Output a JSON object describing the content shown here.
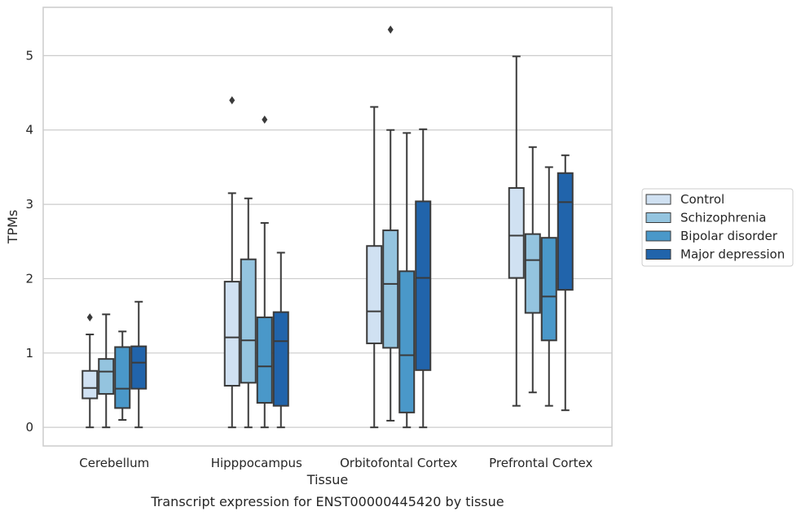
{
  "caption": "Transcript expression for ENST00000445420 by tissue",
  "chart_data": {
    "type": "box",
    "xlabel": "Tissue",
    "ylabel": "TPMs",
    "ylim": [
      -0.25,
      5.65
    ],
    "yticks": [
      0,
      1,
      2,
      3,
      4,
      5
    ],
    "grid": true,
    "legend_position": "right",
    "categories": [
      "Cerebellum",
      "Hipppocampus",
      "Orbitofontal Cortex",
      "Prefrontal Cortex"
    ],
    "series": [
      {
        "name": "Control",
        "color": "#d0e1f2",
        "boxes": [
          {
            "whisker_low": 0.0,
            "q1": 0.39,
            "median": 0.53,
            "q3": 0.76,
            "whisker_high": 1.25,
            "outliers": [
              1.48
            ]
          },
          {
            "whisker_low": 0.0,
            "q1": 0.56,
            "median": 1.21,
            "q3": 1.96,
            "whisker_high": 3.15,
            "outliers": [
              4.4
            ]
          },
          {
            "whisker_low": 0.0,
            "q1": 1.13,
            "median": 1.56,
            "q3": 2.44,
            "whisker_high": 4.31,
            "outliers": []
          },
          {
            "whisker_low": 0.29,
            "q1": 2.01,
            "median": 2.58,
            "q3": 3.22,
            "whisker_high": 4.99,
            "outliers": []
          }
        ]
      },
      {
        "name": "Schizophrenia",
        "color": "#94c4df",
        "boxes": [
          {
            "whisker_low": 0.0,
            "q1": 0.45,
            "median": 0.75,
            "q3": 0.92,
            "whisker_high": 1.52,
            "outliers": []
          },
          {
            "whisker_low": 0.0,
            "q1": 0.6,
            "median": 1.17,
            "q3": 2.26,
            "whisker_high": 3.08,
            "outliers": []
          },
          {
            "whisker_low": 0.09,
            "q1": 1.07,
            "median": 1.93,
            "q3": 2.65,
            "whisker_high": 4.0,
            "outliers": [
              5.35
            ]
          },
          {
            "whisker_low": 0.47,
            "q1": 1.54,
            "median": 2.25,
            "q3": 2.6,
            "whisker_high": 3.77,
            "outliers": []
          }
        ]
      },
      {
        "name": "Bipolar disorder",
        "color": "#4a98c9",
        "boxes": [
          {
            "whisker_low": 0.1,
            "q1": 0.26,
            "median": 0.52,
            "q3": 1.08,
            "whisker_high": 1.29,
            "outliers": []
          },
          {
            "whisker_low": 0.0,
            "q1": 0.33,
            "median": 0.82,
            "q3": 1.48,
            "whisker_high": 2.75,
            "outliers": [
              4.14
            ]
          },
          {
            "whisker_low": 0.0,
            "q1": 0.2,
            "median": 0.97,
            "q3": 2.1,
            "whisker_high": 3.96,
            "outliers": []
          },
          {
            "whisker_low": 0.29,
            "q1": 1.17,
            "median": 1.76,
            "q3": 2.55,
            "whisker_high": 3.5,
            "outliers": []
          }
        ]
      },
      {
        "name": "Major depression",
        "color": "#2164ab",
        "boxes": [
          {
            "whisker_low": 0.0,
            "q1": 0.52,
            "median": 0.87,
            "q3": 1.09,
            "whisker_high": 1.69,
            "outliers": []
          },
          {
            "whisker_low": 0.0,
            "q1": 0.29,
            "median": 1.16,
            "q3": 1.55,
            "whisker_high": 2.35,
            "outliers": []
          },
          {
            "whisker_low": 0.0,
            "q1": 0.77,
            "median": 2.01,
            "q3": 3.04,
            "whisker_high": 4.01,
            "outliers": []
          },
          {
            "whisker_low": 0.23,
            "q1": 1.85,
            "median": 3.03,
            "q3": 3.42,
            "whisker_high": 3.66,
            "outliers": []
          }
        ]
      }
    ]
  }
}
